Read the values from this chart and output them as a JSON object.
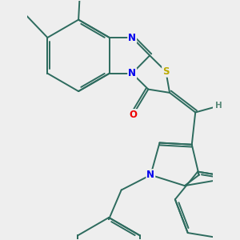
{
  "bg_color": "#eeeeee",
  "bond_color": "#2d6b5e",
  "bond_width": 1.4,
  "dbo": 0.018,
  "atom_colors": {
    "N": "#0000ee",
    "O": "#ee0000",
    "S": "#bbaa00",
    "H": "#5a8a7a"
  },
  "figsize": [
    3.0,
    3.0
  ],
  "dpi": 100
}
